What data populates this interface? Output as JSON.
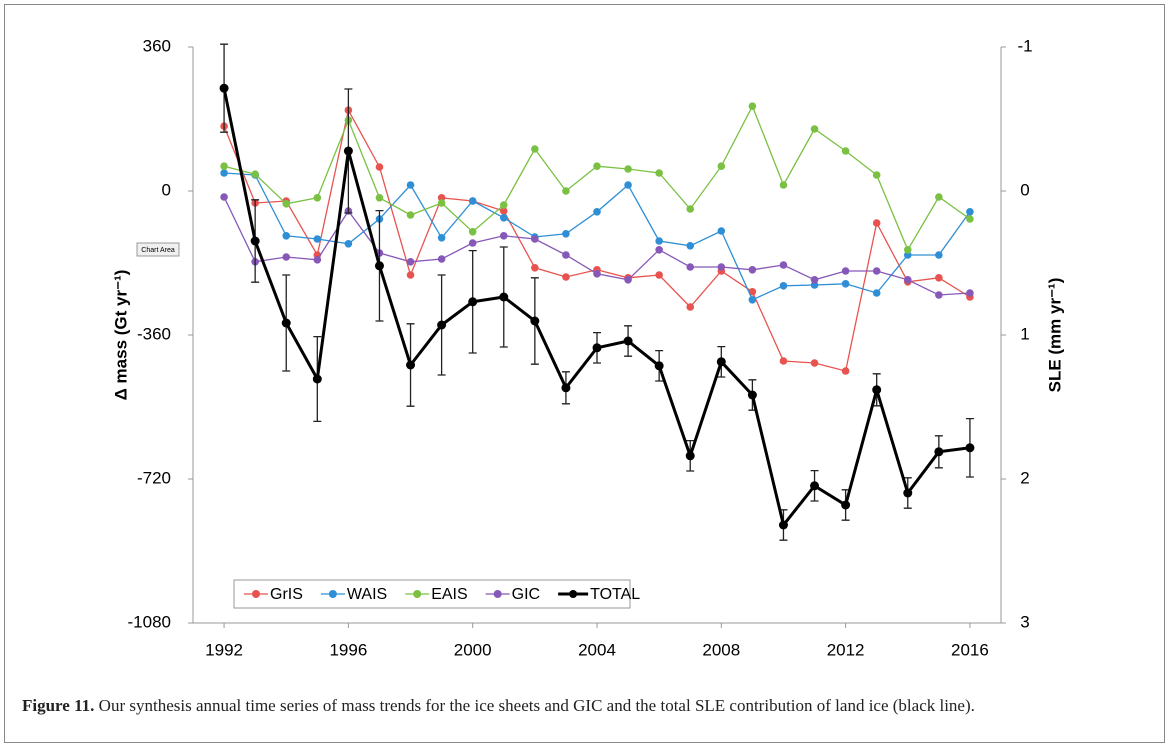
{
  "chart_data": {
    "type": "line",
    "y_label": "Δ mass (Gt yr⁻¹)",
    "y2_label": "SLE (mm yr⁻¹)",
    "chart_area_tooltip": "Chart Area",
    "x": [
      1992,
      1993,
      1994,
      1995,
      1996,
      1997,
      1998,
      1999,
      2000,
      2001,
      2002,
      2003,
      2004,
      2005,
      2006,
      2007,
      2008,
      2009,
      2010,
      2011,
      2012,
      2013,
      2014,
      2015,
      2016
    ],
    "xlim": [
      1991,
      2017
    ],
    "xticks": [
      1992,
      1996,
      2000,
      2004,
      2008,
      2012,
      2016
    ],
    "ylim": [
      -1080,
      360
    ],
    "yticks": [
      -1080,
      -720,
      -360,
      0,
      360
    ],
    "y2lim": [
      3,
      -1
    ],
    "y2ticks": [
      3,
      2,
      1,
      0,
      -1
    ],
    "legend": "lower left",
    "series": [
      {
        "name": "GrIS",
        "color": "#e8534f",
        "values": [
          162,
          -30,
          -25,
          -160,
          202,
          60,
          -210,
          -17,
          -25,
          -50,
          -192,
          -215,
          -197,
          -217,
          -210,
          -290,
          -200,
          -252,
          -425,
          -430,
          -450,
          -80,
          -227,
          -217,
          -265
        ]
      },
      {
        "name": "WAIS",
        "color": "#2e8fd6",
        "values": [
          45,
          40,
          -112,
          -120,
          -132,
          -70,
          15,
          -117,
          -25,
          -67,
          -115,
          -107,
          -52,
          15,
          -125,
          -137,
          -100,
          -272,
          -237,
          -235,
          -232,
          -255,
          -160,
          -160,
          -52
        ]
      },
      {
        "name": "EAIS",
        "color": "#7ac143",
        "values": [
          62,
          42,
          -32,
          -17,
          177,
          -17,
          -60,
          -30,
          -102,
          -35,
          105,
          0,
          62,
          55,
          45,
          -45,
          62,
          212,
          15,
          155,
          100,
          40,
          -147,
          -15,
          -70
        ]
      },
      {
        "name": "GIC",
        "color": "#8658b8",
        "values": [
          -15,
          -177,
          -165,
          -172,
          -50,
          -155,
          -177,
          -170,
          -130,
          -112,
          -120,
          -160,
          -207,
          -222,
          -147,
          -190,
          -190,
          -197,
          -185,
          -222,
          -200,
          -200,
          -222,
          -260,
          -255
        ]
      },
      {
        "name": "TOTAL",
        "color": "#000000",
        "values": [
          257,
          -125,
          -330,
          -470,
          100,
          -187,
          -435,
          -335,
          -277,
          -265,
          -325,
          -492,
          -392,
          -375,
          -437,
          -662,
          -427,
          -510,
          -835,
          -737,
          -785,
          -497,
          -755,
          -652,
          -642
        ],
        "errors": [
          110,
          103,
          120,
          106,
          155,
          138,
          103,
          125,
          128,
          125,
          108,
          40,
          38,
          38,
          38,
          38,
          38,
          38,
          38,
          38,
          38,
          40,
          38,
          40,
          73
        ]
      }
    ]
  },
  "caption": {
    "label": "Figure 11.",
    "text": "Our synthesis annual time series of mass trends for the ice sheets and GIC and the total SLE contribution of land ice (black line)."
  }
}
